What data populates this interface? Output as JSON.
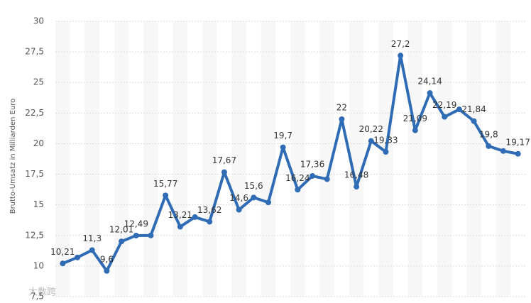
{
  "chart_data": {
    "type": "line",
    "y_label": "Brutto-Umsatz in Milliarden Euro",
    "watermark": "大数跨境",
    "categories": [
      null,
      null,
      null,
      null,
      null,
      null,
      null,
      null,
      null,
      null,
      null,
      null,
      null,
      null,
      null,
      null,
      null,
      null,
      null,
      null,
      null,
      null,
      null,
      null,
      null,
      null,
      null,
      null,
      null,
      null,
      null,
      null
    ],
    "series": [
      {
        "color": "#2f6cb5",
        "values": [
          10.21,
          10.7,
          11.3,
          9.6,
          12.01,
          12.49,
          12.5,
          15.77,
          13.21,
          14.0,
          13.62,
          17.67,
          14.6,
          15.6,
          15.2,
          19.7,
          16.24,
          17.36,
          17.1,
          22,
          16.48,
          20.22,
          19.33,
          27.2,
          21.09,
          24.14,
          22.19,
          22.8,
          21.84,
          19.8,
          19.4,
          19.17
        ],
        "value_labels": [
          "10,21",
          null,
          "11,3",
          "9,6",
          "12,01",
          "12,49",
          null,
          "15,77",
          "13,21",
          null,
          "13,62",
          "17,67",
          "14,6",
          "15,6",
          null,
          "19,7",
          "16,24",
          "17,36",
          null,
          "22",
          "16,48",
          "20,22",
          "19,33",
          "27,2",
          "21,09",
          "24,14",
          "22,19",
          null,
          "21,84",
          "19,8",
          null,
          "19,17"
        ]
      }
    ],
    "ylim": [
      7.5,
      30
    ],
    "yticks": [
      {
        "value": 7.5,
        "label": "7,5"
      },
      10,
      {
        "value": 12.5,
        "label": "12,5"
      },
      15,
      {
        "value": 17.5,
        "label": "17,5"
      },
      20,
      {
        "value": 22.5,
        "label": "22,5"
      },
      25,
      {
        "value": 27.5,
        "label": "27,5"
      },
      30
    ],
    "grid": true
  }
}
